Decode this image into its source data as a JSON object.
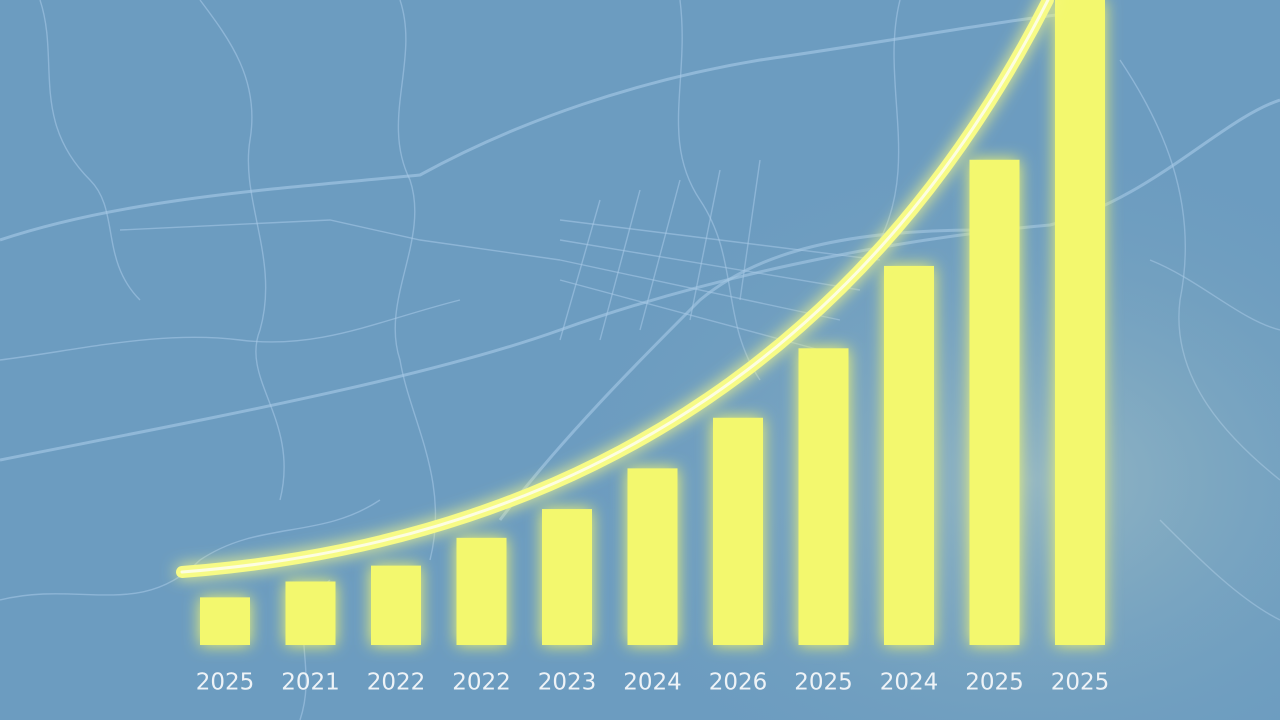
{
  "chart_data": {
    "type": "bar",
    "categories": [
      "2025",
      "2021",
      "2022",
      "2022",
      "2023",
      "2024",
      "2026",
      "2025",
      "2024",
      "2025",
      "2025"
    ],
    "values": [
      48,
      64,
      80,
      108,
      137,
      178,
      229,
      299,
      382,
      489,
      650
    ],
    "color": "#f3f86e"
  }
}
